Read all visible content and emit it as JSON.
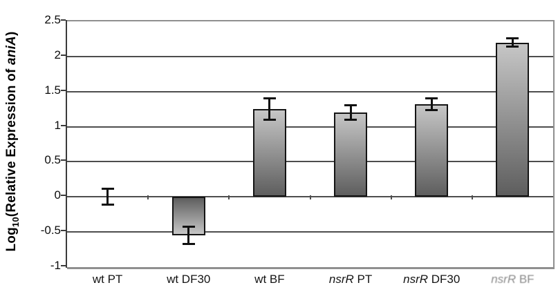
{
  "chart_data": {
    "type": "bar",
    "title": "",
    "xlabel": "",
    "ylabel": "Log10(Relative Expression of aniA)",
    "axis_title_parts": {
      "log": "Log",
      "sub": "10",
      "mid": "(Relative Expression of ",
      "gene": "aniA",
      "close": ")"
    },
    "categories": [
      "wt PT",
      "wt DF30",
      "wt BF",
      "nsrR PT",
      "nsrR DF30",
      "nsrR BF"
    ],
    "category_rich": [
      {
        "italic": "",
        "plain": "wt PT",
        "faded": false
      },
      {
        "italic": "",
        "plain": "wt DF30",
        "faded": false
      },
      {
        "italic": "",
        "plain": "wt BF",
        "faded": false
      },
      {
        "italic": "nsrR",
        "plain": " PT",
        "faded": false
      },
      {
        "italic": "nsrR",
        "plain": " DF30",
        "faded": false
      },
      {
        "italic": "nsrR",
        "plain": " BF",
        "faded": true
      }
    ],
    "values": [
      0,
      -0.55,
      1.25,
      1.2,
      1.32,
      2.2
    ],
    "errors": [
      0.12,
      0.13,
      0.16,
      0.11,
      0.09,
      0.06
    ],
    "ylim": [
      -1,
      2.5
    ],
    "ytick_step": 0.5,
    "ytick_labels": [
      "2.5",
      "2",
      "1.5",
      "1",
      "0.5",
      "0",
      "-0.5",
      "-1"
    ],
    "grid": true,
    "legend": false,
    "bar_fill": "gradient dark at baseline to light at bar end",
    "style": {
      "bar_light": "#c6c6c6",
      "bar_dark": "#5e5e5e",
      "bar_border": "#141414",
      "grid_color": "#4d4d4d",
      "frame_color": "#8f8f8f",
      "axis_color": "#3a3a3a",
      "error_color": "#101010",
      "background": "#ffffff"
    }
  }
}
